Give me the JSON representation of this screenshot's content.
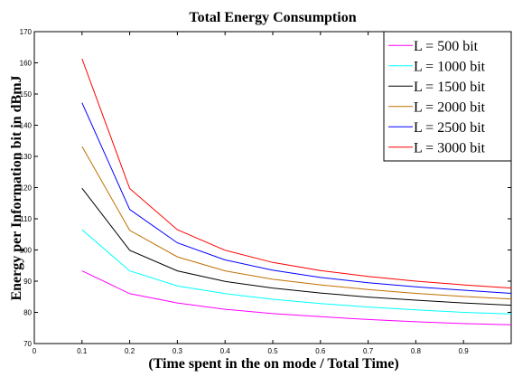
{
  "chart_data": {
    "type": "line",
    "title": "Total Energy Consumption",
    "xlabel": "(Time spent in the on mode / Total Time)",
    "ylabel": "Energy per Information bit in dBmJ",
    "xlim": [
      0,
      1
    ],
    "ylim": [
      70,
      170
    ],
    "xticks": [
      0,
      0.1,
      0.2,
      0.3,
      0.4,
      0.5,
      0.6,
      0.7,
      0.8,
      0.9
    ],
    "xtick_labels": [
      "0",
      "0.1",
      "0.2",
      "0.3",
      "0.4",
      "0.5",
      "0.6",
      "0.7",
      "0.8",
      "0.9"
    ],
    "yticks": [
      70,
      80,
      90,
      100,
      110,
      120,
      130,
      140,
      150,
      160,
      170
    ],
    "ytick_labels": [
      "70",
      "80",
      "90",
      "100",
      "110",
      "120",
      "130",
      "140",
      "150",
      "160",
      "170"
    ],
    "legend_position": "top-right",
    "x": [
      0.1,
      0.2,
      0.3,
      0.4,
      0.5,
      0.6,
      0.7,
      0.8,
      0.9,
      1.0
    ],
    "series": [
      {
        "name": "L = 500 bit",
        "color": "#ff00ff",
        "values": [
          93.3,
          86.0,
          83.0,
          81.0,
          79.6,
          78.6,
          77.7,
          77.0,
          76.4,
          76.0
        ]
      },
      {
        "name": "L = 1000 bit",
        "color": "#00ffff",
        "values": [
          106.5,
          93.3,
          88.5,
          86.0,
          84.2,
          82.8,
          81.7,
          80.8,
          80.0,
          79.5
        ]
      },
      {
        "name": "L = 1500 bit",
        "color": "#000000",
        "values": [
          119.8,
          99.9,
          93.3,
          89.9,
          87.8,
          86.2,
          84.9,
          83.9,
          83.0,
          82.3
        ]
      },
      {
        "name": "L = 2000 bit",
        "color": "#c07000",
        "values": [
          133.2,
          106.3,
          97.8,
          93.3,
          90.6,
          88.8,
          87.3,
          86.1,
          85.1,
          84.3
        ]
      },
      {
        "name": "L = 2500 bit",
        "color": "#0000ff",
        "values": [
          147.2,
          113.0,
          102.3,
          96.8,
          93.5,
          91.2,
          89.5,
          88.2,
          87.1,
          86.1
        ]
      },
      {
        "name": "L = 3000 bit",
        "color": "#ff0000",
        "values": [
          161.3,
          119.7,
          106.5,
          99.9,
          96.0,
          93.4,
          91.5,
          90.0,
          88.8,
          87.8
        ]
      }
    ]
  }
}
